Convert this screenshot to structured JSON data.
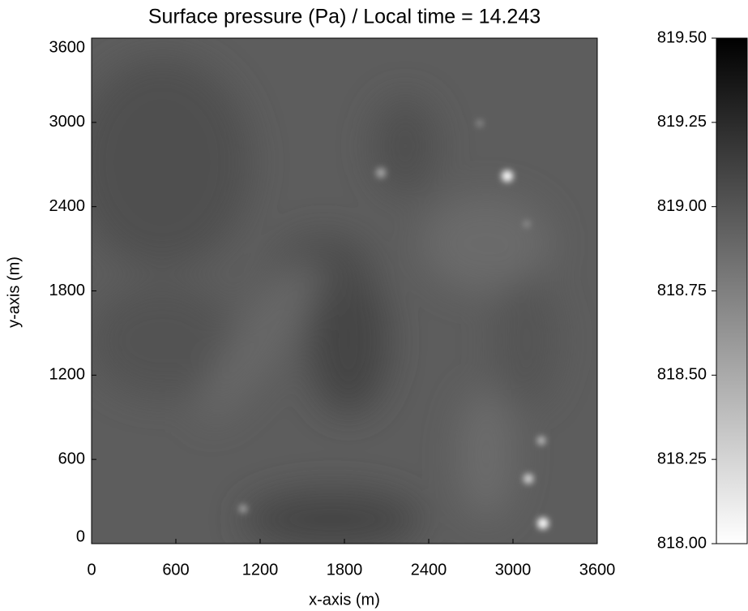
{
  "chart_data": {
    "type": "heatmap",
    "title": "Surface pressure (Pa) / Local time = 14.243",
    "xlabel": "x-axis (m)",
    "ylabel": "y-axis (m)",
    "xlim": [
      0,
      3600
    ],
    "xticks": [
      0,
      600,
      1200,
      1800,
      2400,
      3000,
      3600
    ],
    "ylim": [
      0,
      3600
    ],
    "yticks": [
      0,
      600,
      1200,
      1800,
      2400,
      3000,
      3600
    ],
    "colormap": "gray_r",
    "clim": [
      818.0,
      819.5
    ],
    "cticks": [
      {
        "value": 818.0,
        "label": "818.00"
      },
      {
        "value": 818.25,
        "label": "818.25"
      },
      {
        "value": 818.5,
        "label": "818.50"
      },
      {
        "value": 818.75,
        "label": "818.75"
      },
      {
        "value": 819.0,
        "label": "819.00"
      },
      {
        "value": 819.25,
        "label": "819.25"
      },
      {
        "value": 819.5,
        "label": "819.50"
      }
    ]
  }
}
